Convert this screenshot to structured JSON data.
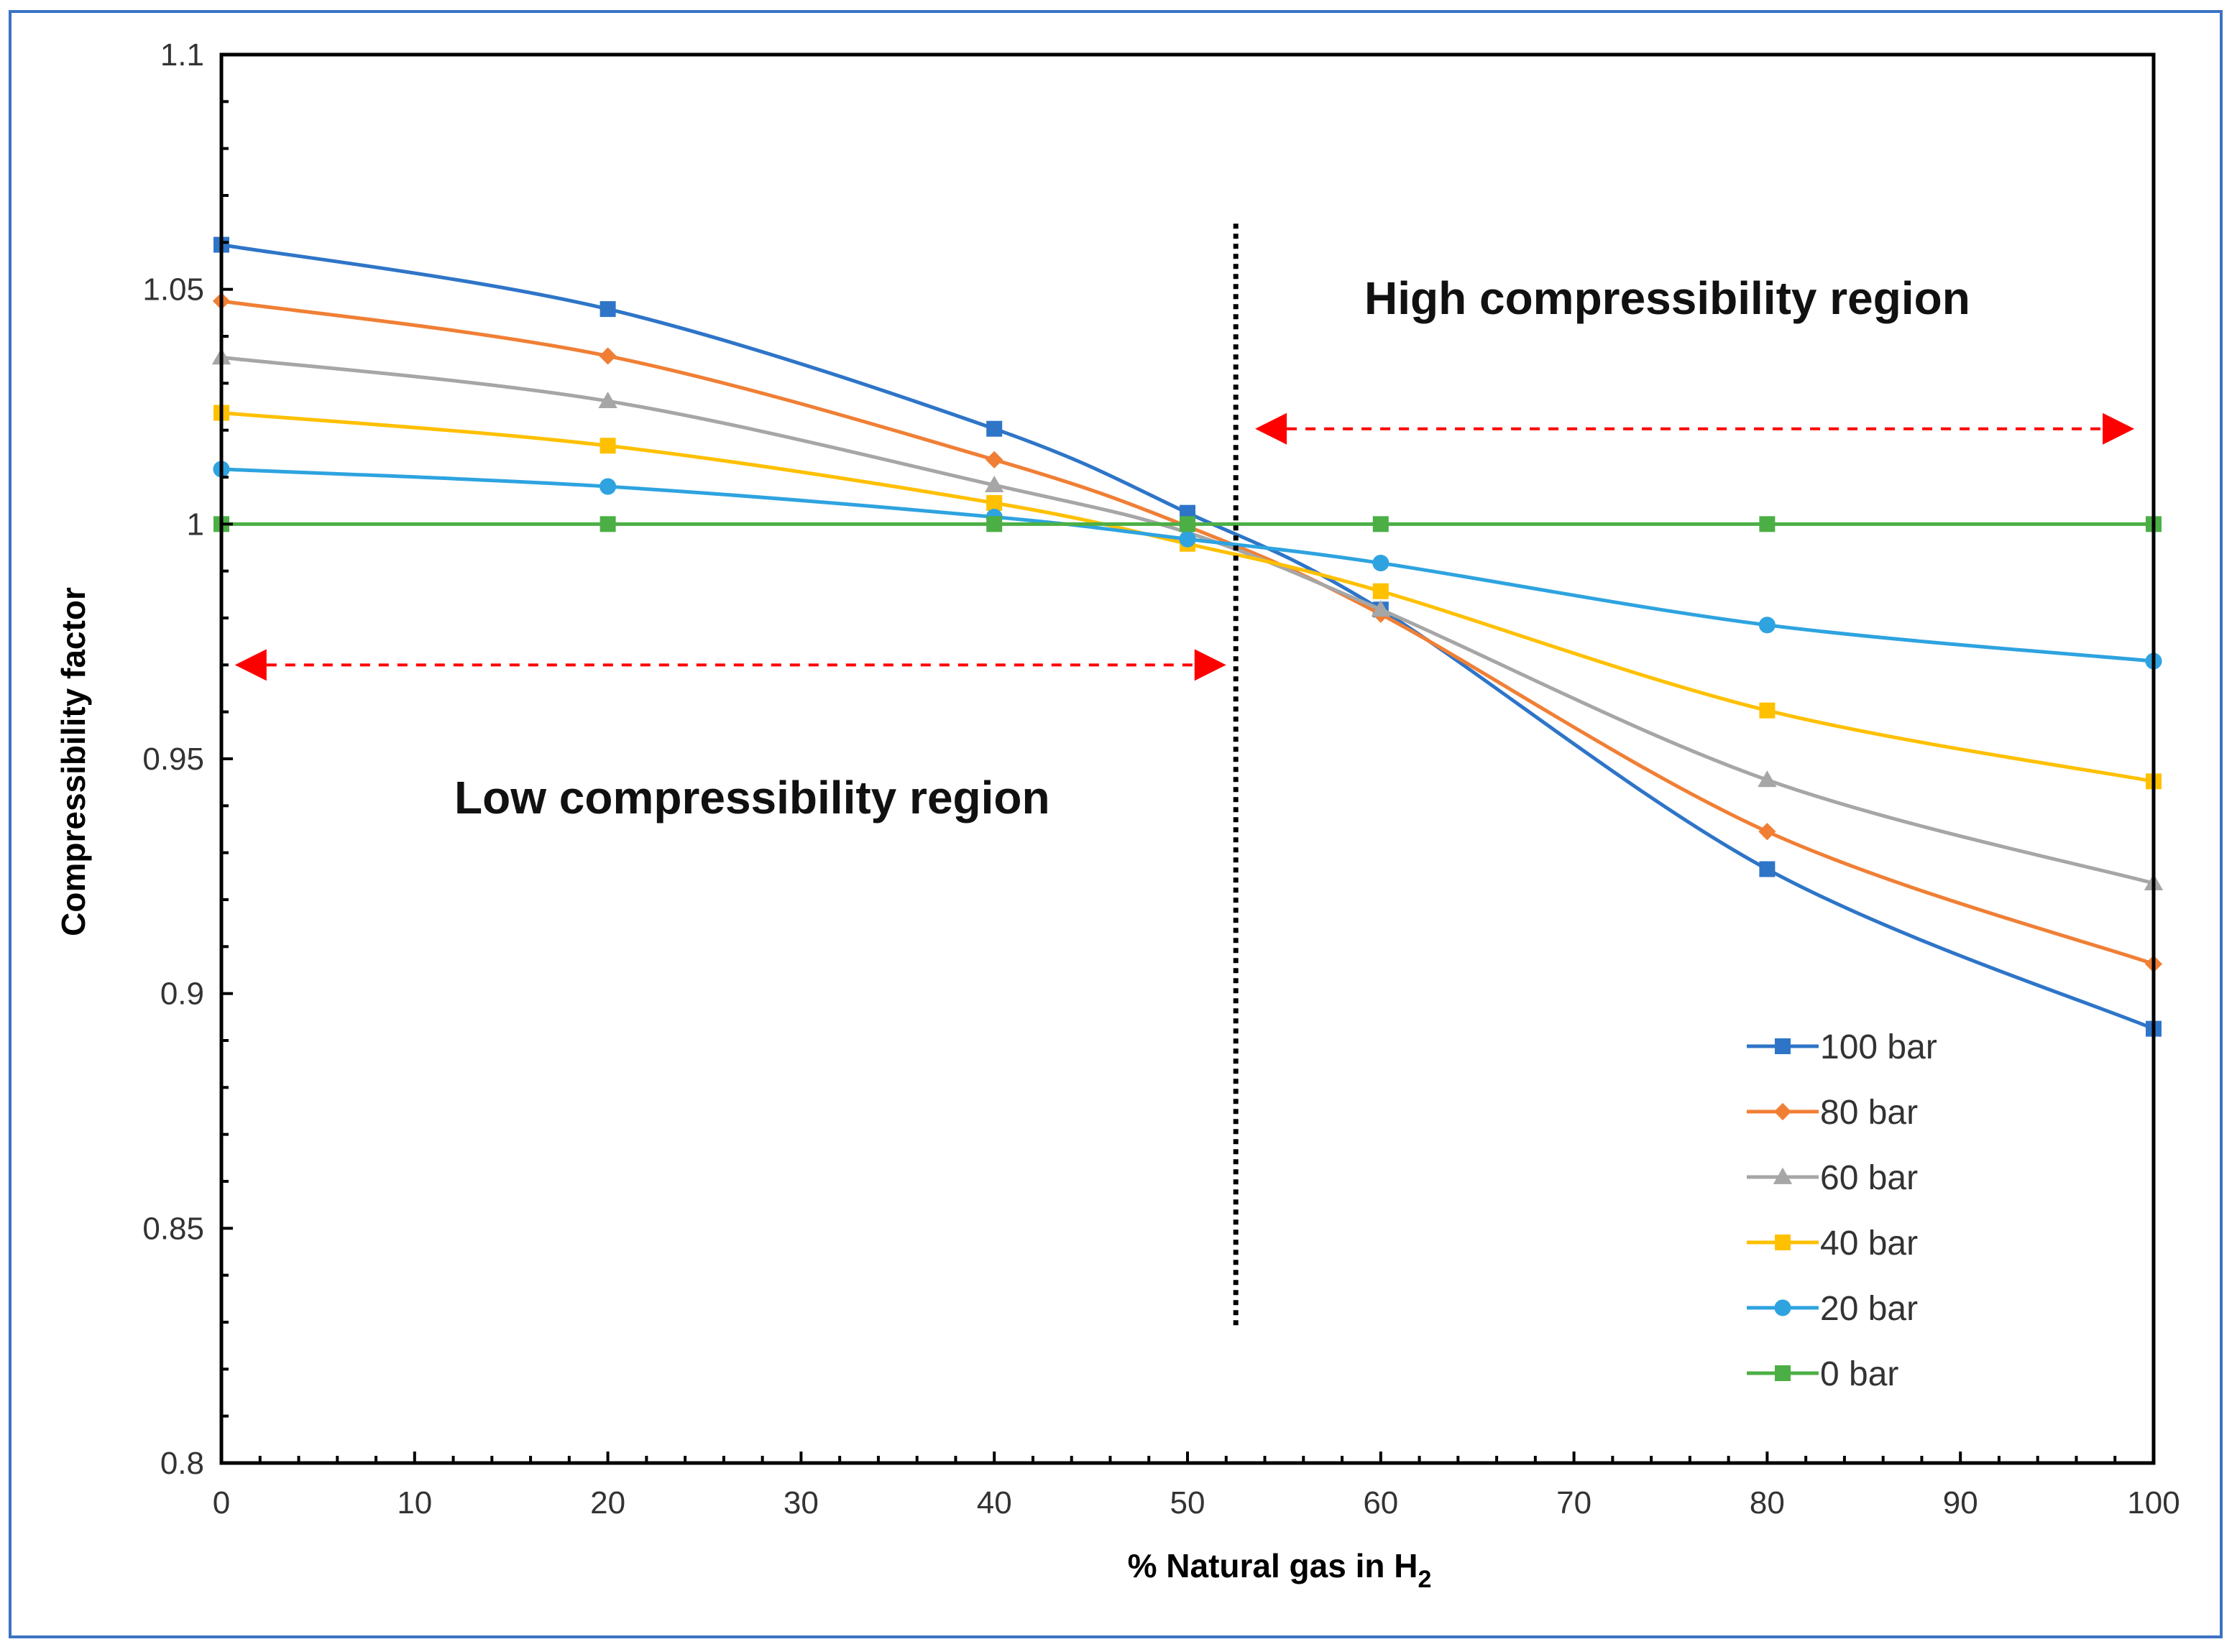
{
  "chart_data": {
    "type": "line",
    "x": [
      0,
      20,
      40,
      50,
      60,
      80,
      100
    ],
    "series": [
      {
        "name": "100 bar",
        "color": "#2e75c8",
        "marker": "square",
        "values": [
          1.0595,
          1.0458,
          1.0203,
          1.0024,
          0.9818,
          0.9265,
          0.8925
        ]
      },
      {
        "name": "80 bar",
        "color": "#f07f35",
        "marker": "diamond",
        "values": [
          1.0475,
          1.0358,
          1.0137,
          0.9995,
          0.9808,
          0.9345,
          0.9063
        ]
      },
      {
        "name": "60 bar",
        "color": "#a6a6a6",
        "marker": "triangle",
        "values": [
          1.0355,
          1.0262,
          1.0083,
          0.9982,
          0.9818,
          0.9455,
          0.9235
        ]
      },
      {
        "name": "40 bar",
        "color": "#ffc000",
        "marker": "square",
        "values": [
          1.0237,
          1.0167,
          1.0045,
          0.9958,
          0.9857,
          0.9603,
          0.9452
        ]
      },
      {
        "name": "20 bar",
        "color": "#2ea3e0",
        "marker": "circle",
        "values": [
          1.0117,
          1.008,
          1.0015,
          0.9968,
          0.9917,
          0.9785,
          0.9708
        ]
      },
      {
        "name": "0 bar",
        "color": "#4caf45",
        "marker": "square",
        "values": [
          1.0,
          1.0,
          1.0,
          1.0,
          1.0,
          1.0,
          1.0
        ]
      }
    ],
    "xlabel": "% Natural gas in H",
    "xlabel_subscript": "2",
    "ylabel": "Compressibility factor",
    "xlim": [
      0,
      100
    ],
    "ylim": [
      0.8,
      1.1
    ],
    "xticks": [
      "0",
      "10",
      "20",
      "30",
      "40",
      "50",
      "60",
      "70",
      "80",
      "90",
      "100"
    ],
    "yticks": [
      "0.8",
      "0.85",
      "0.9",
      "0.95",
      "1",
      "1.05",
      "1.1"
    ],
    "divider_x": 52.5,
    "divider_range": [
      0.829,
      1.064
    ],
    "annotations": [
      {
        "text": "High compressibility region",
        "arrow_x": [
          53.5,
          99
        ],
        "arrow_y": 1.0203,
        "arrow_color": "#ff0000"
      },
      {
        "text": "Low compressibility region",
        "arrow_x": [
          0.7,
          52
        ],
        "arrow_y": 0.97,
        "arrow_color": "#ff0000"
      }
    ],
    "legend_position": "bottom-right",
    "grid": false
  }
}
